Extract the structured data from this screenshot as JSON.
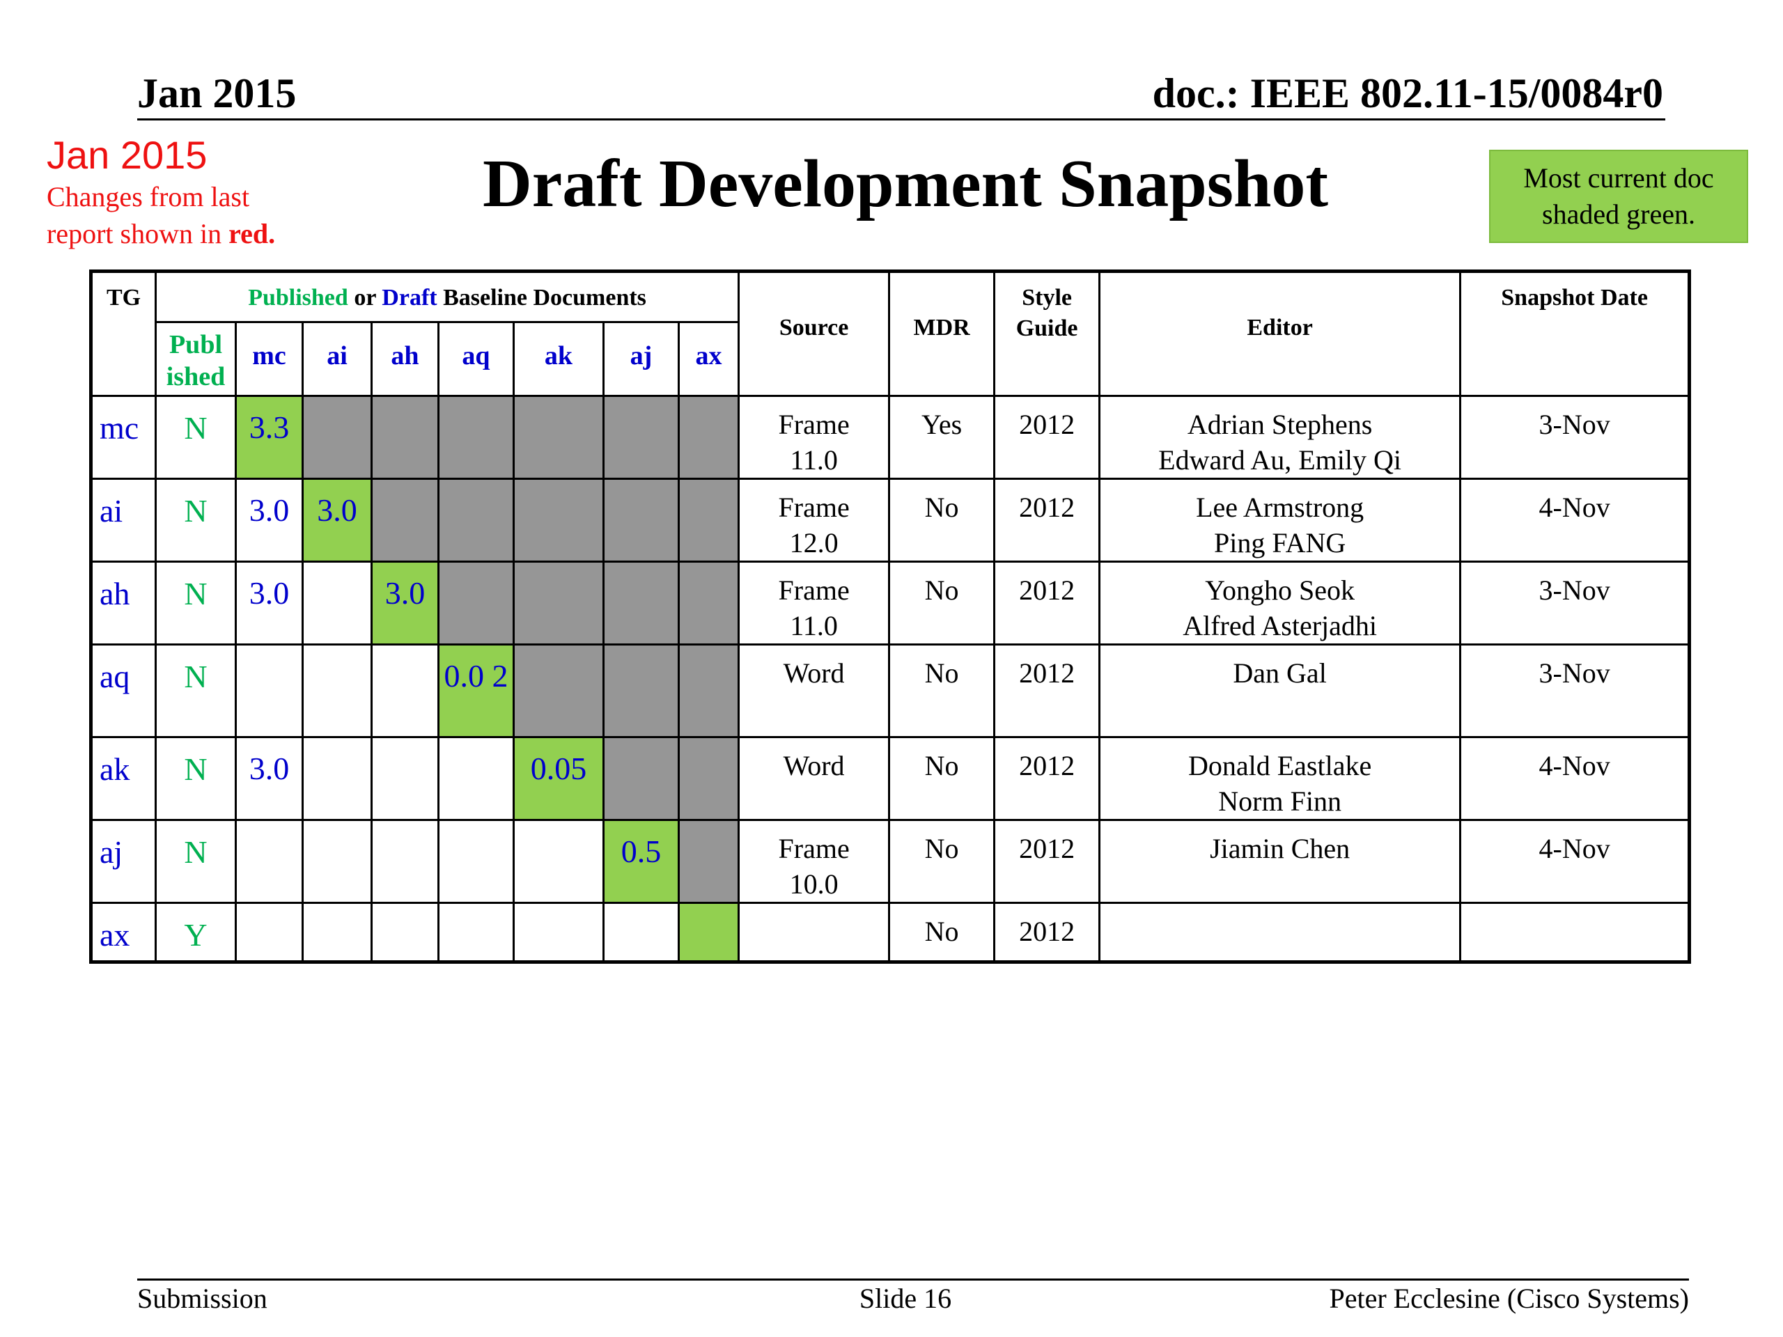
{
  "header": {
    "date": "Jan 2015",
    "doc": "doc.: IEEE 802.11-15/0084r0"
  },
  "note": {
    "date": "Jan 2015",
    "line1": "Changes from  last",
    "line2_prefix": "report shown in ",
    "line2_emph": "red."
  },
  "title": "Draft Development Snapshot",
  "legend_box": {
    "line1": "Most current doc",
    "line2": "shaded green."
  },
  "table": {
    "headers": {
      "tg": "TG",
      "baseline_published": "Published",
      "baseline_or": " or ",
      "baseline_draft": "Draft",
      "baseline_rest": " Baseline Documents",
      "source": "Source",
      "mdr": "MDR",
      "style_guide": [
        "Style",
        "Guide"
      ],
      "editor": "Editor",
      "snapshot_date": "Snapshot Date"
    },
    "subheaders": {
      "published": [
        "Publ",
        "ished"
      ],
      "baselines": [
        "mc",
        "ai",
        "ah",
        "aq",
        "ak",
        "aj",
        "ax"
      ]
    },
    "rows": [
      {
        "tg": "mc",
        "published": "N",
        "baselines": [
          "3.3",
          "",
          "",
          "",
          "",
          "",
          ""
        ],
        "shading": [
          "g",
          "x",
          "x",
          "x",
          "x",
          "x",
          "x"
        ],
        "source": [
          "Frame",
          "11.0"
        ],
        "mdr": "Yes",
        "style": "2012",
        "editor": [
          "Adrian Stephens",
          "Edward Au, Emily Qi"
        ],
        "date": "3-Nov"
      },
      {
        "tg": "ai",
        "published": "N",
        "baselines": [
          "3.0",
          "3.0",
          "",
          "",
          "",
          "",
          ""
        ],
        "shading": [
          "",
          "g",
          "x",
          "x",
          "x",
          "x",
          "x"
        ],
        "source": [
          "Frame",
          "12.0"
        ],
        "mdr": "No",
        "style": "2012",
        "editor": [
          "Lee Armstrong",
          "Ping FANG"
        ],
        "date": "4-Nov"
      },
      {
        "tg": "ah",
        "published": "N",
        "baselines": [
          "3.0",
          "",
          "3.0",
          "",
          "",
          "",
          ""
        ],
        "shading": [
          "",
          "",
          "g",
          "x",
          "x",
          "x",
          "x"
        ],
        "source": [
          "Frame",
          "11.0"
        ],
        "mdr": "No",
        "style": "2012",
        "editor": [
          "Yongho Seok",
          "Alfred Asterjadhi"
        ],
        "date": "3-Nov"
      },
      {
        "tg": "aq",
        "published": "N",
        "baselines": [
          "",
          "",
          "",
          "0.0 2",
          "",
          "",
          ""
        ],
        "shading": [
          "",
          "",
          "",
          "g",
          "x",
          "x",
          "x"
        ],
        "source": [
          "Word",
          ""
        ],
        "mdr": "No",
        "style": "2012",
        "editor": [
          "Dan Gal",
          ""
        ],
        "date": "3-Nov"
      },
      {
        "tg": "ak",
        "published": "N",
        "baselines": [
          "3.0",
          "",
          "",
          "",
          "0.05",
          "",
          ""
        ],
        "shading": [
          "",
          "",
          "",
          "",
          "g",
          "x",
          "x"
        ],
        "source": [
          "Word",
          ""
        ],
        "mdr": "No",
        "style": "2012",
        "editor": [
          "Donald Eastlake",
          "Norm Finn"
        ],
        "date": "4-Nov"
      },
      {
        "tg": "aj",
        "published": "N",
        "baselines": [
          "",
          "",
          "",
          "",
          "",
          "0.5",
          ""
        ],
        "shading": [
          "",
          "",
          "",
          "",
          "",
          "g",
          "x"
        ],
        "source": [
          "Frame",
          "10.0"
        ],
        "mdr": "No",
        "style": "2012",
        "editor": [
          "Jiamin Chen",
          ""
        ],
        "date": "4-Nov"
      },
      {
        "tg": "ax",
        "published": "Y",
        "baselines": [
          "",
          "",
          "",
          "",
          "",
          "",
          ""
        ],
        "shading": [
          "",
          "",
          "",
          "",
          "",
          "",
          "g"
        ],
        "source": [
          "",
          ""
        ],
        "mdr": "No",
        "style": "2012",
        "editor": [
          "",
          ""
        ],
        "date": ""
      }
    ]
  },
  "footer": {
    "left": "Submission",
    "center": "Slide 16",
    "right": "Peter Ecclesine (Cisco Systems)"
  }
}
